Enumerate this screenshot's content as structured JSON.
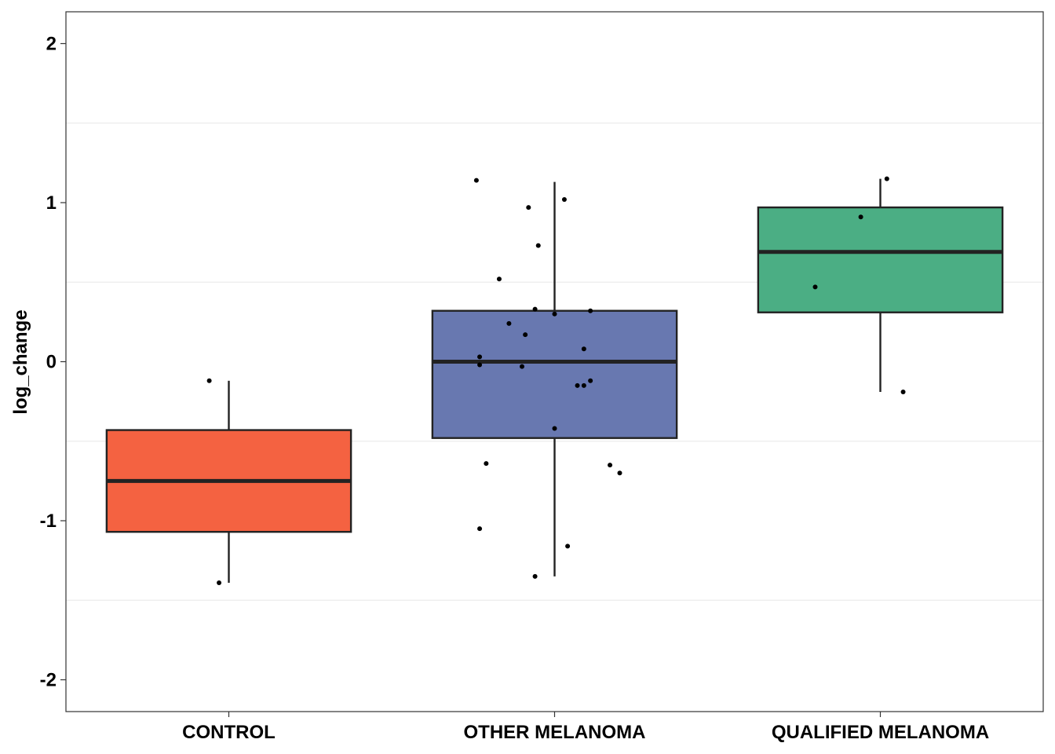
{
  "chart_data": {
    "type": "box",
    "xlabel": "",
    "ylabel": "log_change",
    "ylim": [
      -2.2,
      2.2
    ],
    "yticks": [
      -2,
      -1,
      0,
      1,
      2
    ],
    "grid": "horizontal minor lines only",
    "categories": [
      "CONTROL",
      "OTHER MELANOMA",
      "QUALIFIED MELANOMA"
    ],
    "boxes": [
      {
        "category": "CONTROL",
        "color": "#F46241",
        "whisker_low": -1.39,
        "q1": -1.07,
        "median": -0.75,
        "q3": -0.43,
        "whisker_high": -0.12
      },
      {
        "category": "OTHER MELANOMA",
        "color": "#6878B0",
        "whisker_low": -1.35,
        "q1": -0.48,
        "median": 0.0,
        "q3": 0.32,
        "whisker_high": 1.13
      },
      {
        "category": "QUALIFIED MELANOMA",
        "color": "#4BAE84",
        "whisker_low": -0.19,
        "q1": 0.31,
        "median": 0.69,
        "q3": 0.97,
        "whisker_high": 1.15
      }
    ],
    "points": [
      {
        "category": "CONTROL",
        "jitter": -0.06,
        "y": -0.12
      },
      {
        "category": "CONTROL",
        "jitter": -0.03,
        "y": -1.39
      },
      {
        "category": "OTHER MELANOMA",
        "jitter": -0.24,
        "y": 1.14
      },
      {
        "category": "OTHER MELANOMA",
        "jitter": 0.03,
        "y": 1.02
      },
      {
        "category": "OTHER MELANOMA",
        "jitter": -0.08,
        "y": 0.97
      },
      {
        "category": "OTHER MELANOMA",
        "jitter": -0.05,
        "y": 0.73
      },
      {
        "category": "OTHER MELANOMA",
        "jitter": -0.17,
        "y": 0.52
      },
      {
        "category": "OTHER MELANOMA",
        "jitter": -0.06,
        "y": 0.33
      },
      {
        "category": "OTHER MELANOMA",
        "jitter": 0.11,
        "y": 0.32
      },
      {
        "category": "OTHER MELANOMA",
        "jitter": 0.0,
        "y": 0.3
      },
      {
        "category": "OTHER MELANOMA",
        "jitter": -0.14,
        "y": 0.24
      },
      {
        "category": "OTHER MELANOMA",
        "jitter": -0.09,
        "y": 0.17
      },
      {
        "category": "OTHER MELANOMA",
        "jitter": 0.09,
        "y": 0.08
      },
      {
        "category": "OTHER MELANOMA",
        "jitter": -0.23,
        "y": 0.03
      },
      {
        "category": "OTHER MELANOMA",
        "jitter": -0.23,
        "y": -0.02
      },
      {
        "category": "OTHER MELANOMA",
        "jitter": -0.1,
        "y": -0.03
      },
      {
        "category": "OTHER MELANOMA",
        "jitter": 0.11,
        "y": -0.12
      },
      {
        "category": "OTHER MELANOMA",
        "jitter": 0.07,
        "y": -0.15
      },
      {
        "category": "OTHER MELANOMA",
        "jitter": 0.09,
        "y": -0.15
      },
      {
        "category": "OTHER MELANOMA",
        "jitter": 0.0,
        "y": -0.42
      },
      {
        "category": "OTHER MELANOMA",
        "jitter": -0.21,
        "y": -0.64
      },
      {
        "category": "OTHER MELANOMA",
        "jitter": 0.17,
        "y": -0.65
      },
      {
        "category": "OTHER MELANOMA",
        "jitter": 0.2,
        "y": -0.7
      },
      {
        "category": "OTHER MELANOMA",
        "jitter": -0.23,
        "y": -1.05
      },
      {
        "category": "OTHER MELANOMA",
        "jitter": 0.04,
        "y": -1.16
      },
      {
        "category": "OTHER MELANOMA",
        "jitter": -0.06,
        "y": -1.35
      },
      {
        "category": "QUALIFIED MELANOMA",
        "jitter": 0.02,
        "y": 1.15
      },
      {
        "category": "QUALIFIED MELANOMA",
        "jitter": -0.06,
        "y": 0.91
      },
      {
        "category": "QUALIFIED MELANOMA",
        "jitter": -0.2,
        "y": 0.47
      },
      {
        "category": "QUALIFIED MELANOMA",
        "jitter": 0.07,
        "y": -0.19
      }
    ]
  }
}
